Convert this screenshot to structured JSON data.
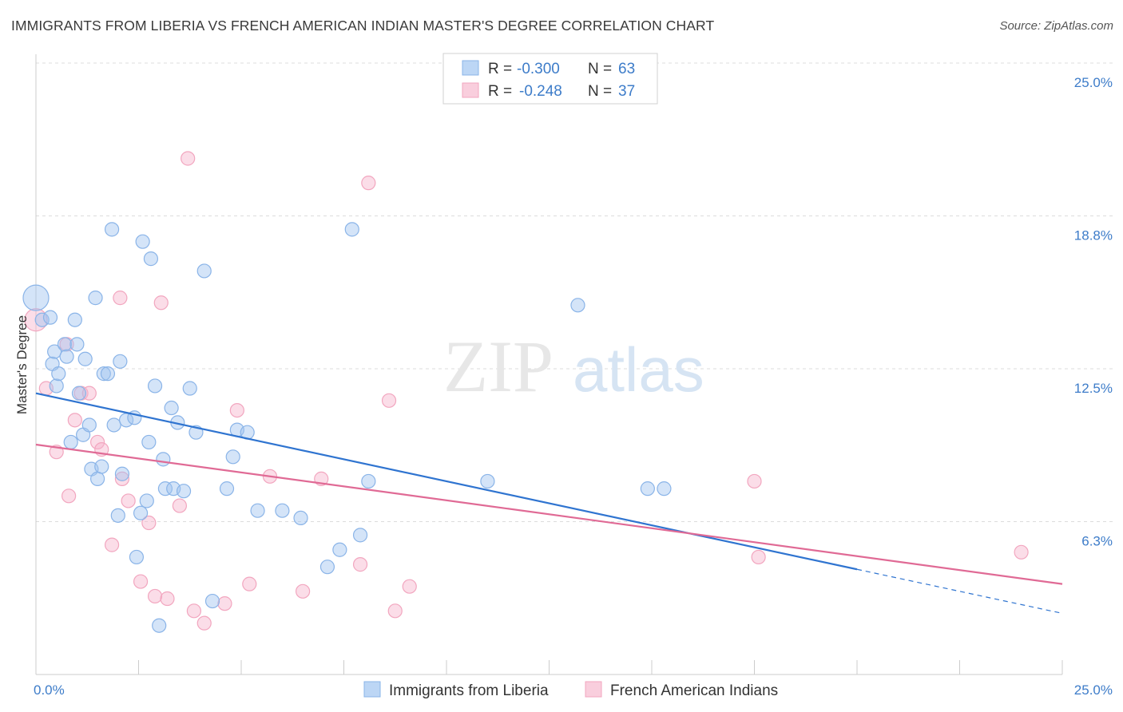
{
  "title": "IMMIGRANTS FROM LIBERIA VS FRENCH AMERICAN INDIAN MASTER'S DEGREE CORRELATION CHART",
  "source": "Source: ZipAtlas.com",
  "watermark": {
    "zip": "ZIP",
    "atlas": "atlas"
  },
  "colors": {
    "blue": "#8ab4e8",
    "blue_line": "#2f74d0",
    "pink": "#f2a6bf",
    "pink_line": "#e06a95",
    "tick": "#3d7cc9"
  },
  "legend": {
    "rows": [
      {
        "r_label": "R =",
        "r_value": "-0.300",
        "n_label": "N =",
        "n_value": "63"
      },
      {
        "r_label": "R =",
        "r_value": "-0.248",
        "n_label": "N =",
        "n_value": "37"
      }
    ]
  },
  "bottom_legend": [
    "Immigrants from Liberia",
    "French American Indians"
  ],
  "chart_data": {
    "type": "scatter",
    "xlabel": "",
    "ylabel": "Master's Degree",
    "xlim": [
      0,
      25
    ],
    "ylim": [
      0,
      25
    ],
    "x_tick_labels": [
      "0.0%",
      "25.0%"
    ],
    "y_tick_labels": [
      "6.3%",
      "12.5%",
      "18.8%",
      "25.0%"
    ],
    "y_ticks": [
      6.25,
      12.5,
      18.75,
      25.0
    ],
    "series": [
      {
        "name": "Immigrants from Liberia",
        "color": "#8ab4e8",
        "trend": {
          "x0": 0.0,
          "y0": 11.5,
          "x1": 20.0,
          "y1": 4.3,
          "dashed_to_x": 25.0,
          "dashed_to_y": 2.5
        },
        "points": [
          [
            0.0,
            15.4
          ],
          [
            0.15,
            14.5
          ],
          [
            0.35,
            14.6
          ],
          [
            0.4,
            12.7
          ],
          [
            0.45,
            13.2
          ],
          [
            0.5,
            11.8
          ],
          [
            0.55,
            12.3
          ],
          [
            0.7,
            13.5
          ],
          [
            0.75,
            13.0
          ],
          [
            0.85,
            9.5
          ],
          [
            0.95,
            14.5
          ],
          [
            1.0,
            13.5
          ],
          [
            1.05,
            11.5
          ],
          [
            1.15,
            9.8
          ],
          [
            1.2,
            12.9
          ],
          [
            1.3,
            10.2
          ],
          [
            1.35,
            8.4
          ],
          [
            1.45,
            15.4
          ],
          [
            1.5,
            8.0
          ],
          [
            1.6,
            8.5
          ],
          [
            1.65,
            12.3
          ],
          [
            1.75,
            12.3
          ],
          [
            1.85,
            18.2
          ],
          [
            1.9,
            10.2
          ],
          [
            2.0,
            6.5
          ],
          [
            2.05,
            12.8
          ],
          [
            2.1,
            8.2
          ],
          [
            2.2,
            10.4
          ],
          [
            2.4,
            10.5
          ],
          [
            2.45,
            4.8
          ],
          [
            2.55,
            6.6
          ],
          [
            2.6,
            17.7
          ],
          [
            2.7,
            7.1
          ],
          [
            2.75,
            9.5
          ],
          [
            2.8,
            17.0
          ],
          [
            2.9,
            11.8
          ],
          [
            3.0,
            2.0
          ],
          [
            3.1,
            8.8
          ],
          [
            3.15,
            7.6
          ],
          [
            3.3,
            10.9
          ],
          [
            3.35,
            7.6
          ],
          [
            3.45,
            10.3
          ],
          [
            3.6,
            7.5
          ],
          [
            3.75,
            11.7
          ],
          [
            3.9,
            9.9
          ],
          [
            4.1,
            16.5
          ],
          [
            4.3,
            3.0
          ],
          [
            4.65,
            7.6
          ],
          [
            4.8,
            8.9
          ],
          [
            4.9,
            10.0
          ],
          [
            5.15,
            9.9
          ],
          [
            5.4,
            6.7
          ],
          [
            6.0,
            6.7
          ],
          [
            6.45,
            6.4
          ],
          [
            7.1,
            4.4
          ],
          [
            7.4,
            5.1
          ],
          [
            7.7,
            18.2
          ],
          [
            7.9,
            5.7
          ],
          [
            8.1,
            7.9
          ],
          [
            11.0,
            7.9
          ],
          [
            13.2,
            15.1
          ],
          [
            15.3,
            7.6
          ],
          [
            14.9,
            7.6
          ]
        ]
      },
      {
        "name": "French American Indians",
        "color": "#f2a6bf",
        "trend": {
          "x0": 0.0,
          "y0": 9.4,
          "x1": 25.0,
          "y1": 3.7
        },
        "points": [
          [
            0.0,
            14.5
          ],
          [
            0.25,
            11.7
          ],
          [
            0.5,
            9.1
          ],
          [
            0.75,
            13.5
          ],
          [
            0.8,
            7.3
          ],
          [
            0.95,
            10.4
          ],
          [
            1.1,
            11.5
          ],
          [
            1.3,
            11.5
          ],
          [
            1.5,
            9.5
          ],
          [
            1.6,
            9.2
          ],
          [
            1.85,
            5.3
          ],
          [
            2.05,
            15.4
          ],
          [
            2.1,
            8.0
          ],
          [
            2.25,
            7.1
          ],
          [
            2.55,
            3.8
          ],
          [
            2.75,
            6.2
          ],
          [
            2.9,
            3.2
          ],
          [
            3.05,
            15.2
          ],
          [
            3.2,
            3.1
          ],
          [
            3.5,
            6.9
          ],
          [
            3.7,
            21.1
          ],
          [
            3.85,
            2.6
          ],
          [
            4.1,
            2.1
          ],
          [
            4.6,
            2.9
          ],
          [
            4.9,
            10.8
          ],
          [
            5.2,
            3.7
          ],
          [
            5.7,
            8.1
          ],
          [
            6.5,
            3.4
          ],
          [
            6.95,
            8.0
          ],
          [
            7.9,
            4.5
          ],
          [
            8.1,
            20.1
          ],
          [
            8.6,
            11.2
          ],
          [
            8.75,
            2.6
          ],
          [
            9.1,
            3.6
          ],
          [
            17.5,
            7.9
          ],
          [
            17.6,
            4.8
          ],
          [
            24.0,
            5.0
          ]
        ]
      }
    ],
    "grid": true,
    "legend_placement": "top-center"
  }
}
